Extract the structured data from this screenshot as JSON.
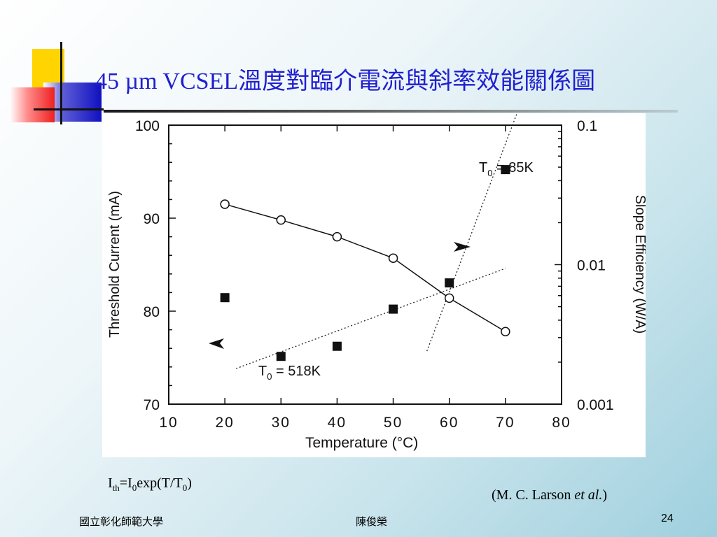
{
  "slide": {
    "title": "45 µm VCSEL溫度對臨介電流與斜率效能關係圖",
    "formula": {
      "i": "I",
      "th": "th",
      "eq_i": "=I",
      "zero1": "0",
      "exp_open": "exp(T/T",
      "zero2": "0",
      "close": ")"
    },
    "citation": {
      "prefix": "(M. C. Larson ",
      "etal": "et al.",
      "suffix": ")"
    },
    "footer": {
      "left": "國立彰化師範大學",
      "center": "陳俊榮",
      "page_number": "24"
    }
  },
  "colors": {
    "title": "#1f1fd0",
    "background_light": "#ffffff",
    "background_dark": "#9fd0de"
  },
  "chart_data": {
    "type": "scatter",
    "xlabel": "Temperature (°C)",
    "ylabel": "Threshold Current (mA)",
    "y2label": "Slope Efficiency (W/A)",
    "xlim": [
      10,
      80
    ],
    "ylim": [
      70,
      100
    ],
    "y2lim": [
      0.001,
      0.1
    ],
    "y2scale": "log",
    "x_ticks": [
      "10",
      "20",
      "30",
      "40",
      "50",
      "60",
      "70",
      "80"
    ],
    "y_ticks": [
      "70",
      "80",
      "90",
      "100"
    ],
    "y2_ticks": [
      "0.001",
      "0.01",
      "0.1"
    ],
    "series": [
      {
        "marker": "open-circle",
        "axis": "left",
        "line": "solid",
        "x": [
          20,
          30,
          40,
          50,
          60,
          70
        ],
        "y": [
          91.5,
          89.8,
          88.0,
          85.7,
          81.4,
          77.8
        ]
      },
      {
        "marker": "filled-square",
        "axis": "right",
        "x": [
          20,
          30,
          40,
          50,
          60,
          70
        ],
        "y": [
          0.0058,
          0.0022,
          0.0026,
          0.0048,
          0.0074,
          0.048
        ]
      }
    ],
    "fits": [
      {
        "label": "T0 = 85K",
        "x": [
          56,
          72
        ],
        "y": [
          0.0024,
          0.12
        ],
        "style": "dotted"
      },
      {
        "label": "T0 = 518K",
        "x": [
          22,
          70
        ],
        "y": [
          0.0018,
          0.0094
        ],
        "style": "dotted"
      }
    ],
    "annotations": [
      {
        "label_main": "T",
        "label_sub": "0",
        "label_rest": " = 85K"
      },
      {
        "label_main": "T",
        "label_sub": "0",
        "label_rest": " = 518K"
      }
    ]
  }
}
